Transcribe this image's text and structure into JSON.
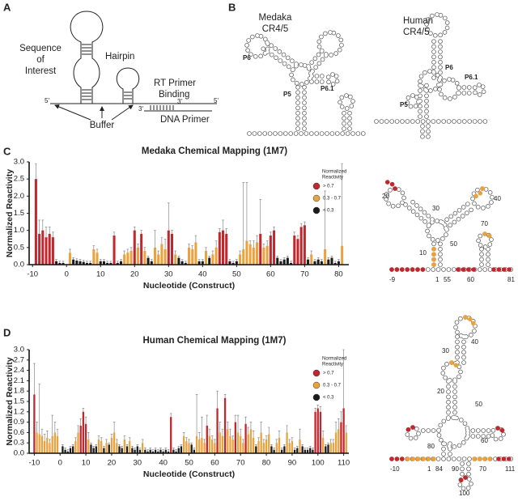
{
  "panel_labels": [
    "A",
    "B",
    "C",
    "D"
  ],
  "panel_a": {
    "sequence_of_interest": [
      "Sequence",
      "of",
      "Interest"
    ],
    "hairpin": "Hairpin",
    "rt_primer_binding": [
      "RT Primer",
      "Binding"
    ],
    "buffer": "Buffer",
    "dna_primer": "DNA Primer",
    "ends": [
      "5'",
      "3'",
      "3'",
      "5'"
    ]
  },
  "panel_b": {
    "medaka": {
      "name": [
        "Medaka",
        "CR4/5"
      ],
      "helices": [
        "P6",
        "P6.1",
        "P5"
      ]
    },
    "human": {
      "name": [
        "Human",
        "CR4/5"
      ],
      "helices": [
        "P6",
        "P6.1",
        "P5"
      ]
    }
  },
  "structure_c": {
    "numbers": [
      20,
      30,
      40,
      10,
      50,
      70,
      -9,
      1,
      55,
      60,
      81
    ]
  },
  "structure_d": {
    "numbers": [
      40,
      30,
      50,
      20,
      60,
      80,
      -10,
      1,
      84,
      90,
      70,
      111,
      100
    ]
  },
  "chart_data": [
    {
      "type": "bar",
      "title": "Medaka Chemical Mapping (1M7)",
      "xlabel": "Nucleotide (Construct)",
      "ylabel": "Normalized Reactivity",
      "legend_title": [
        "Normalized",
        "Reactivity"
      ],
      "xlim": [
        -11,
        83
      ],
      "xticks": [
        -10,
        0,
        10,
        20,
        30,
        40,
        50,
        60,
        70,
        80
      ],
      "ylim": [
        0,
        3
      ],
      "yticks": [
        {
          "value": 0,
          "label": "0.0"
        },
        0.5,
        {
          "value": 1,
          "label": "1.0"
        },
        1.5,
        {
          "value": 2,
          "label": "2.0"
        },
        2.5,
        {
          "value": 3,
          "label": "3.0"
        }
      ],
      "series": [
        {
          "name": "> 0.7",
          "color": "#c1272d",
          "x": [
            -9,
            -8,
            -7,
            -6,
            -5,
            -4,
            14,
            20,
            22,
            30,
            31,
            45,
            46,
            47,
            57,
            60,
            61,
            67,
            68,
            69,
            70
          ],
          "values": [
            2.5,
            0.9,
            1.0,
            0.8,
            0.9,
            0.8,
            0.85,
            1.0,
            0.9,
            1.0,
            0.9,
            0.95,
            1.0,
            0.9,
            0.9,
            0.85,
            1.0,
            0.85,
            0.75,
            1.1,
            1.15
          ],
          "errors": [
            0.45,
            0.4,
            0.3,
            0.3,
            0.2,
            0.15,
            0.1,
            0.1,
            0.1,
            0.8,
            0.1,
            0.1,
            0.3,
            0.15,
            1.0,
            0.1,
            0.1,
            0.1,
            0.1,
            0.1,
            0.1
          ]
        },
        {
          "name": "0.3 - 0.7",
          "color": "#eaa23f",
          "x": [
            1,
            8,
            9,
            17,
            18,
            19,
            21,
            23,
            26,
            27,
            28,
            29,
            32,
            36,
            37,
            38,
            41,
            43,
            44,
            51,
            52,
            53,
            54,
            55,
            56,
            58,
            59,
            72,
            76,
            81
          ],
          "values": [
            0.35,
            0.45,
            0.35,
            0.3,
            0.35,
            0.4,
            0.5,
            0.4,
            0.5,
            0.3,
            0.6,
            0.45,
            0.3,
            0.5,
            0.45,
            0.65,
            0.4,
            0.3,
            0.5,
            0.3,
            0.45,
            0.7,
            0.6,
            0.5,
            0.65,
            0.5,
            0.55,
            0.3,
            0.45,
            0.55
          ],
          "errors": [
            0.1,
            0.1,
            0.1,
            0.1,
            0.1,
            0.1,
            0.1,
            0.1,
            0.5,
            0.1,
            0.2,
            0.3,
            0.1,
            0.1,
            0.1,
            0.2,
            0.1,
            0.1,
            0.2,
            0.1,
            1.95,
            1.7,
            0.1,
            0.2,
            0.2,
            0.1,
            0.15,
            0.1,
            1.7,
            2.4
          ]
        },
        {
          "name": "< 0.3",
          "color": "#1b1b1b",
          "x": [
            -3,
            -2,
            -1,
            2,
            3,
            4,
            5,
            6,
            7,
            10,
            11,
            12,
            13,
            15,
            16,
            24,
            25,
            33,
            34,
            35,
            39,
            40,
            42,
            48,
            49,
            50,
            62,
            63,
            64,
            65,
            66,
            71,
            73,
            74,
            75,
            77,
            78,
            79,
            80
          ],
          "values": [
            0.1,
            0.05,
            0.05,
            0.15,
            0.12,
            0.1,
            0.08,
            0.05,
            0.05,
            0.1,
            0.1,
            0.05,
            0.05,
            0.05,
            0.1,
            0.2,
            0.1,
            0.2,
            0.1,
            0.05,
            0.1,
            0.1,
            0.2,
            0.1,
            0.05,
            0.1,
            0.2,
            0.1,
            0.15,
            0.2,
            0.05,
            0.15,
            0.1,
            0.15,
            0.1,
            0.15,
            0.2,
            0.05,
            0.1
          ],
          "errors": [
            0.05,
            0.05,
            0.05,
            0.05,
            0.05,
            0.05,
            0.05,
            0.05,
            0.05,
            0.05,
            0.05,
            0.05,
            0.05,
            0.05,
            0.05,
            0.05,
            0.05,
            0.05,
            0.05,
            0.05,
            0.05,
            0.05,
            0.05,
            0.05,
            0.05,
            0.05,
            0.05,
            0.05,
            0.05,
            0.05,
            0.05,
            0.05,
            0.05,
            0.05,
            0.05,
            0.05,
            0.05,
            0.05,
            0.05
          ]
        }
      ]
    },
    {
      "type": "bar",
      "title": "Human Chemical Mapping (1M7)",
      "xlabel": "Nucleotide (Construct)",
      "ylabel": "Normalized Reactivity",
      "legend_title": [
        "Normalized",
        "Reactivity"
      ],
      "xlim": [
        -12,
        112
      ],
      "xticks": [
        -10,
        0,
        10,
        20,
        30,
        40,
        50,
        60,
        70,
        80,
        90,
        100,
        110
      ],
      "ylim": [
        0,
        3
      ],
      "yticks": [
        {
          "value": 0,
          "label": "0.0"
        },
        0.3,
        0.6,
        0.9,
        1.2,
        1.5,
        1.8,
        2.1,
        2.4,
        2.7,
        {
          "value": 3,
          "label": "3.0"
        }
      ],
      "series": [
        {
          "name": "> 0.7",
          "color": "#c1272d",
          "x": [
            -10,
            8,
            9,
            10,
            43,
            57,
            61,
            64,
            68,
            72,
            99,
            100,
            101,
            109,
            110
          ],
          "values": [
            1.7,
            0.8,
            1.2,
            0.85,
            1.05,
            0.8,
            1.3,
            1.6,
            0.9,
            0.85,
            1.2,
            1.3,
            1.2,
            0.9,
            1.3
          ],
          "errors": [
            0.9,
            0.2,
            0.1,
            0.2,
            0.1,
            0.3,
            0.5,
            0.1,
            0.2,
            0.2,
            0.1,
            0.1,
            0.15,
            0.3,
            1.7
          ]
        },
        {
          "name": "0.3 - 0.7",
          "color": "#eaa23f",
          "x": [
            -9,
            -8,
            -7,
            -6,
            -5,
            -4,
            -3,
            -2,
            -1,
            6,
            7,
            11,
            15,
            16,
            18,
            20,
            21,
            22,
            25,
            27,
            32,
            48,
            49,
            50,
            53,
            54,
            55,
            56,
            58,
            59,
            60,
            62,
            63,
            65,
            66,
            67,
            69,
            70,
            71,
            73,
            74,
            75,
            77,
            78,
            79,
            80,
            81,
            84,
            85,
            88,
            89,
            90,
            93,
            102,
            105,
            106,
            107,
            108,
            111
          ],
          "values": [
            0.6,
            0.55,
            0.5,
            0.35,
            0.45,
            0.3,
            0.5,
            0.6,
            0.5,
            0.35,
            0.6,
            0.4,
            0.4,
            0.35,
            0.3,
            0.45,
            0.6,
            0.3,
            0.4,
            0.35,
            0.3,
            0.5,
            0.35,
            0.3,
            0.5,
            0.4,
            0.45,
            0.3,
            0.5,
            0.4,
            0.3,
            0.6,
            0.5,
            0.7,
            0.5,
            0.4,
            0.6,
            0.5,
            0.3,
            0.55,
            0.7,
            0.45,
            0.35,
            0.6,
            0.3,
            0.4,
            0.55,
            0.3,
            0.45,
            0.6,
            0.3,
            0.35,
            0.4,
            0.45,
            0.3,
            0.3,
            0.6,
            0.7,
            0.6
          ],
          "errors": [
            0.3,
            1.45,
            0.2,
            0.2,
            0.2,
            0.1,
            0.6,
            0.3,
            0.2,
            0.1,
            0.2,
            0.2,
            0.1,
            0.1,
            0.1,
            0.1,
            0.3,
            0.1,
            0.1,
            0.1,
            0.1,
            0.1,
            0.1,
            0.1,
            1.2,
            0.2,
            0.6,
            0.1,
            0.2,
            0.1,
            0.1,
            0.3,
            0.2,
            0.2,
            0.2,
            0.1,
            0.5,
            0.2,
            0.1,
            0.2,
            0.2,
            0.2,
            0.1,
            0.3,
            0.1,
            0.1,
            0.2,
            0.1,
            0.2,
            0.2,
            0.1,
            0.1,
            0.3,
            0.2,
            0.1,
            0.1,
            0.3,
            0.3,
            0.2
          ]
        },
        {
          "name": "< 0.3",
          "color": "#1b1b1b",
          "x": [
            1,
            2,
            3,
            4,
            5,
            12,
            13,
            14,
            17,
            19,
            23,
            24,
            26,
            28,
            29,
            30,
            31,
            33,
            34,
            35,
            36,
            37,
            38,
            39,
            40,
            41,
            42,
            44,
            45,
            46,
            47,
            51,
            52,
            76,
            82,
            83,
            86,
            87,
            91,
            92,
            94,
            95,
            96,
            97,
            98,
            103,
            104
          ],
          "values": [
            0.2,
            0.1,
            0.05,
            0.15,
            0.2,
            0.25,
            0.15,
            0.2,
            0.15,
            0.25,
            0.2,
            0.15,
            0.2,
            0.15,
            0.1,
            0.2,
            0.1,
            0.1,
            0.05,
            0.1,
            0.05,
            0.1,
            0.05,
            0.1,
            0.05,
            0.1,
            0.05,
            0.1,
            0.05,
            0.15,
            0.2,
            0.25,
            0.1,
            0.2,
            0.2,
            0.1,
            0.1,
            0.2,
            0.1,
            0.15,
            0.2,
            0.1,
            0.1,
            0.15,
            0.1,
            0.2,
            0.25
          ],
          "errors": [
            0.05,
            0.05,
            0.05,
            0.05,
            0.05,
            0.05,
            0.05,
            0.05,
            0.05,
            0.05,
            0.05,
            0.05,
            0.05,
            0.05,
            0.05,
            0.05,
            0.05,
            0.05,
            0.05,
            0.05,
            0.05,
            0.05,
            0.05,
            0.05,
            0.05,
            0.05,
            0.05,
            0.05,
            0.05,
            0.05,
            0.05,
            0.05,
            0.05,
            0.05,
            0.05,
            0.05,
            0.05,
            0.05,
            0.05,
            0.05,
            0.05,
            0.05,
            0.05,
            0.05,
            0.05,
            0.05,
            0.05
          ]
        }
      ]
    }
  ]
}
